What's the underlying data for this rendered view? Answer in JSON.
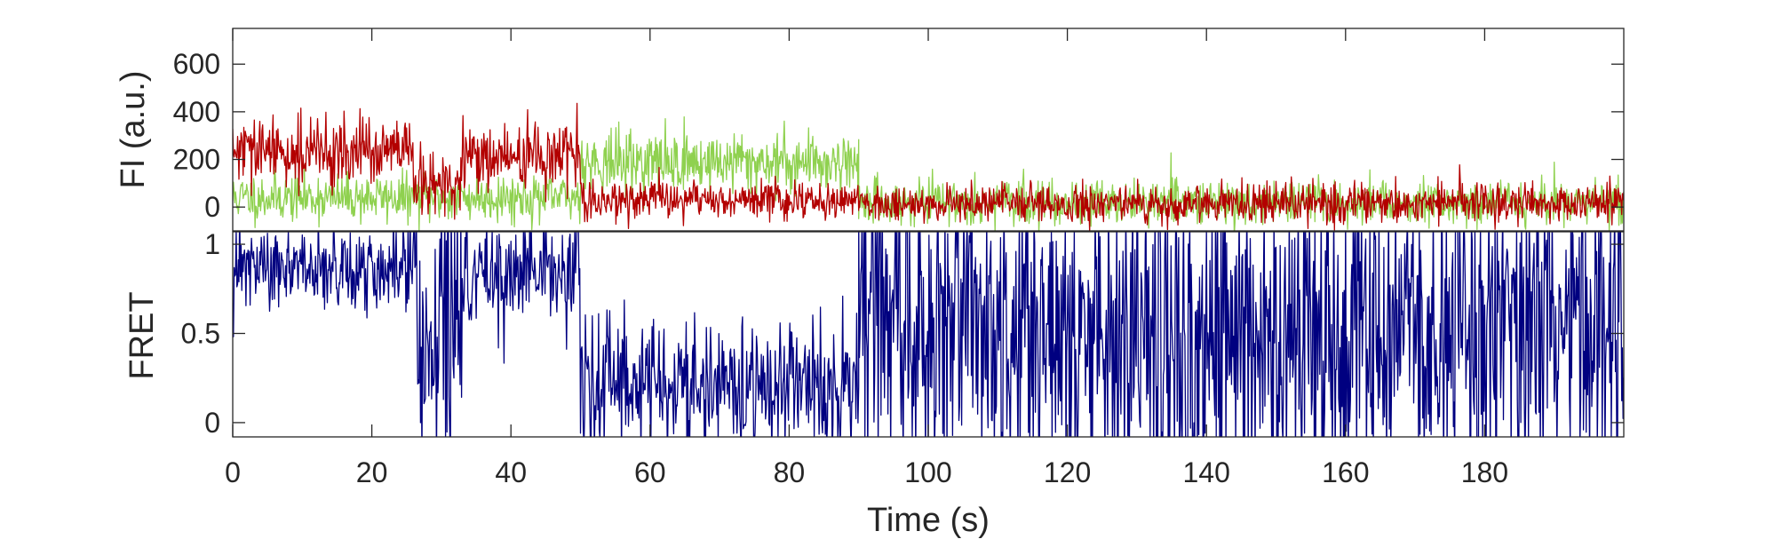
{
  "chart_data": [
    {
      "type": "line",
      "panel": "top",
      "ylabel": "FI (a.u.)",
      "xlim": [
        0,
        200
      ],
      "ylim": [
        -100,
        750
      ],
      "yticks": [
        0,
        200,
        400,
        600
      ],
      "ytick_labels": [
        "0",
        "200",
        "400",
        "600"
      ],
      "show_xtick_labels": false,
      "grid": false,
      "colors": {
        "donor": "#8fd14f",
        "acceptor": "#b30000"
      },
      "series": [
        {
          "key": "donor",
          "segments": [
            {
              "t": [
                0,
                50
              ],
              "mean": 40,
              "noise": 50
            },
            {
              "t": [
                50,
                90
              ],
              "mean": 190,
              "noise": 65
            },
            {
              "t": [
                90,
                200
              ],
              "mean": 20,
              "noise": 45
            }
          ]
        },
        {
          "key": "acceptor",
          "segments": [
            {
              "t": [
                0,
                26
              ],
              "mean": 230,
              "noise": 70
            },
            {
              "t": [
                26,
                33
              ],
              "mean": 90,
              "noise": 70
            },
            {
              "t": [
                33,
                50
              ],
              "mean": 210,
              "noise": 70
            },
            {
              "t": [
                50,
                90
              ],
              "mean": 30,
              "noise": 40
            },
            {
              "t": [
                90,
                200
              ],
              "mean": 15,
              "noise": 40
            }
          ]
        }
      ]
    },
    {
      "type": "line",
      "panel": "bottom",
      "xlabel": "Time (s)",
      "ylabel": "FRET",
      "xlim": [
        0,
        200
      ],
      "ylim": [
        -0.08,
        1.07
      ],
      "yticks": [
        0,
        0.5,
        1
      ],
      "ytick_labels": [
        "0",
        "0.5",
        "1"
      ],
      "xticks": [
        0,
        20,
        40,
        60,
        80,
        100,
        120,
        140,
        160,
        180
      ],
      "xtick_labels": [
        "0",
        "20",
        "40",
        "60",
        "80",
        "100",
        "120",
        "140",
        "160",
        "180"
      ],
      "grid": false,
      "color": "#000080",
      "series": [
        {
          "key": "fret",
          "segments": [
            {
              "t": [
                0,
                26
              ],
              "mean": 0.86,
              "noise": 0.12
            },
            {
              "t": [
                26,
                33
              ],
              "mean": 0.55,
              "noise": 0.45
            },
            {
              "t": [
                33,
                50
              ],
              "mean": 0.83,
              "noise": 0.15
            },
            {
              "t": [
                50,
                90
              ],
              "mean": 0.2,
              "noise": 0.18
            },
            {
              "t": [
                90,
                200
              ],
              "mean": 0.5,
              "noise": 0.5
            }
          ]
        }
      ]
    }
  ]
}
